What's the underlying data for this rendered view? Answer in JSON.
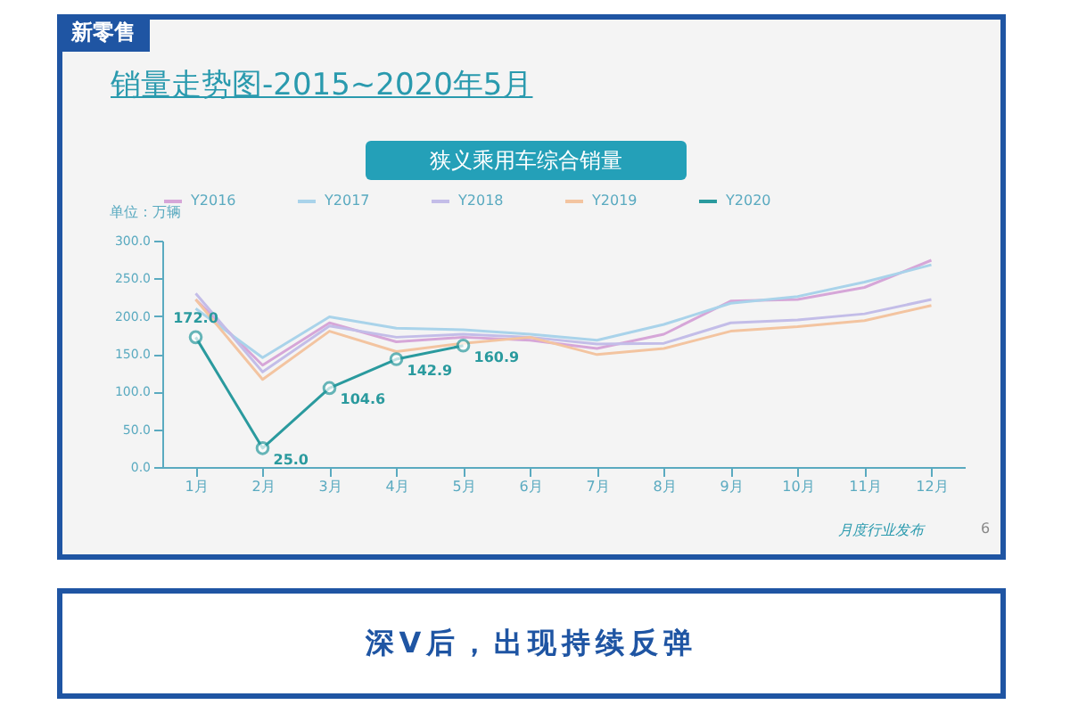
{
  "chart_data": {
    "type": "line",
    "title": "销量走势图-2015~2020年5月",
    "subtitle": "狭义乘用车综合销量",
    "ylabel": "单位：万辆",
    "annotations": [
      "新零售",
      "深V后，出现持续反弹",
      "月度行业发布",
      "6"
    ],
    "categories": [
      "1月",
      "2月",
      "3月",
      "4月",
      "5月",
      "6月",
      "7月",
      "8月",
      "9月",
      "10月",
      "11月",
      "12月"
    ],
    "series": [
      {
        "name": "Y2016",
        "color": "#d6a6d8",
        "values": [
          222,
          135,
          191,
          166,
          172,
          168,
          157,
          176,
          220,
          222,
          238,
          274
        ]
      },
      {
        "name": "Y2017",
        "color": "#a9d3ea",
        "values": [
          210,
          145,
          199,
          184,
          182,
          176,
          168,
          189,
          217,
          226,
          245,
          268
        ]
      },
      {
        "name": "Y2018",
        "color": "#c3bde8",
        "values": [
          230,
          126,
          187,
          172,
          176,
          172,
          163,
          164,
          191,
          195,
          203,
          222
        ]
      },
      {
        "name": "Y2019",
        "color": "#f3c4a0",
        "values": [
          222,
          116,
          180,
          153,
          164,
          172,
          149,
          157,
          180,
          186,
          194,
          214
        ]
      },
      {
        "name": "Y2020",
        "color": "#2a9a9e",
        "marker": "circle",
        "values": [
          172.0,
          25.0,
          104.6,
          142.9,
          160.9,
          null,
          null,
          null,
          null,
          null,
          null,
          null
        ],
        "value_labels": [
          "172.0",
          "25.0",
          "104.6",
          "142.9",
          "160.9",
          null,
          null,
          null,
          null,
          null,
          null,
          null
        ]
      }
    ],
    "ylim": [
      0,
      300
    ],
    "yticks": [
      {
        "value": 0,
        "label": "0.0"
      },
      {
        "value": 50,
        "label": "50.0"
      },
      {
        "value": 100,
        "label": "100.0"
      },
      {
        "value": 150,
        "label": "150.0"
      },
      {
        "value": 200,
        "label": "200.0"
      },
      {
        "value": 250,
        "label": "250.0"
      },
      {
        "value": 300,
        "label": "300.0"
      }
    ],
    "grid": false,
    "legend": "top"
  }
}
